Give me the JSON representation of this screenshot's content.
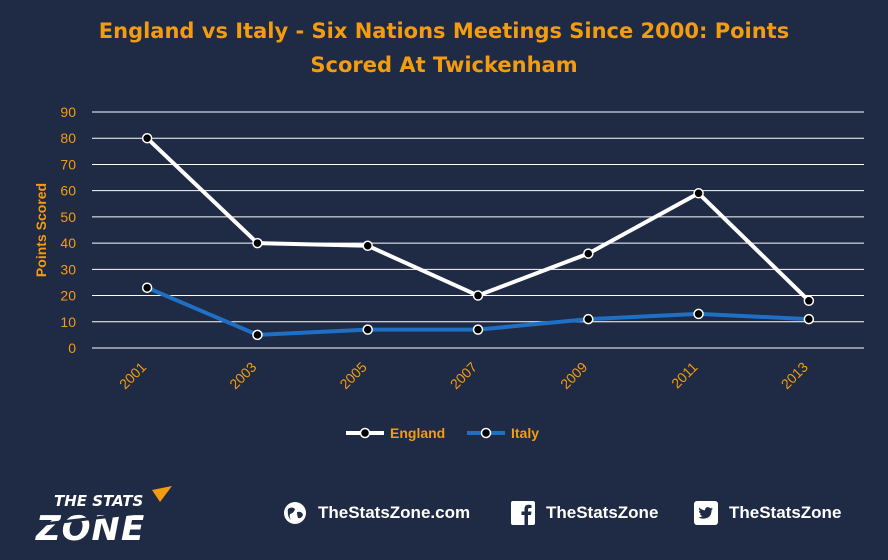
{
  "chart_data": {
    "type": "line",
    "title_line1": "England vs Italy - Six Nations Meetings Since 2000: Points",
    "title_line2": "Scored At Twickenham",
    "ylabel": "Points Scored",
    "xlabel": "",
    "categories": [
      "2001",
      "2003",
      "2005",
      "2007",
      "2009",
      "2011",
      "2013"
    ],
    "ylim": [
      0,
      90
    ],
    "yticks": [
      0,
      10,
      20,
      30,
      40,
      50,
      60,
      70,
      80,
      90
    ],
    "grid": true,
    "legend_position": "bottom",
    "series": [
      {
        "name": "England",
        "values": [
          80,
          40,
          39,
          20,
          36,
          59,
          18
        ],
        "color": "#ffffff"
      },
      {
        "name": "Italy",
        "values": [
          23,
          5,
          7,
          7,
          11,
          13,
          11
        ],
        "color": "#1f6fc4"
      }
    ],
    "tick_color": "#f39c12",
    "marker_fill": "#000000"
  },
  "branding": {
    "logo_line1": "THE STATS",
    "logo_line2": "ZONE",
    "website": "TheStatsZone.com",
    "facebook": "TheStatsZone",
    "twitter": "TheStatsZone",
    "icons": [
      "globe-icon",
      "facebook-icon",
      "twitter-icon"
    ]
  }
}
